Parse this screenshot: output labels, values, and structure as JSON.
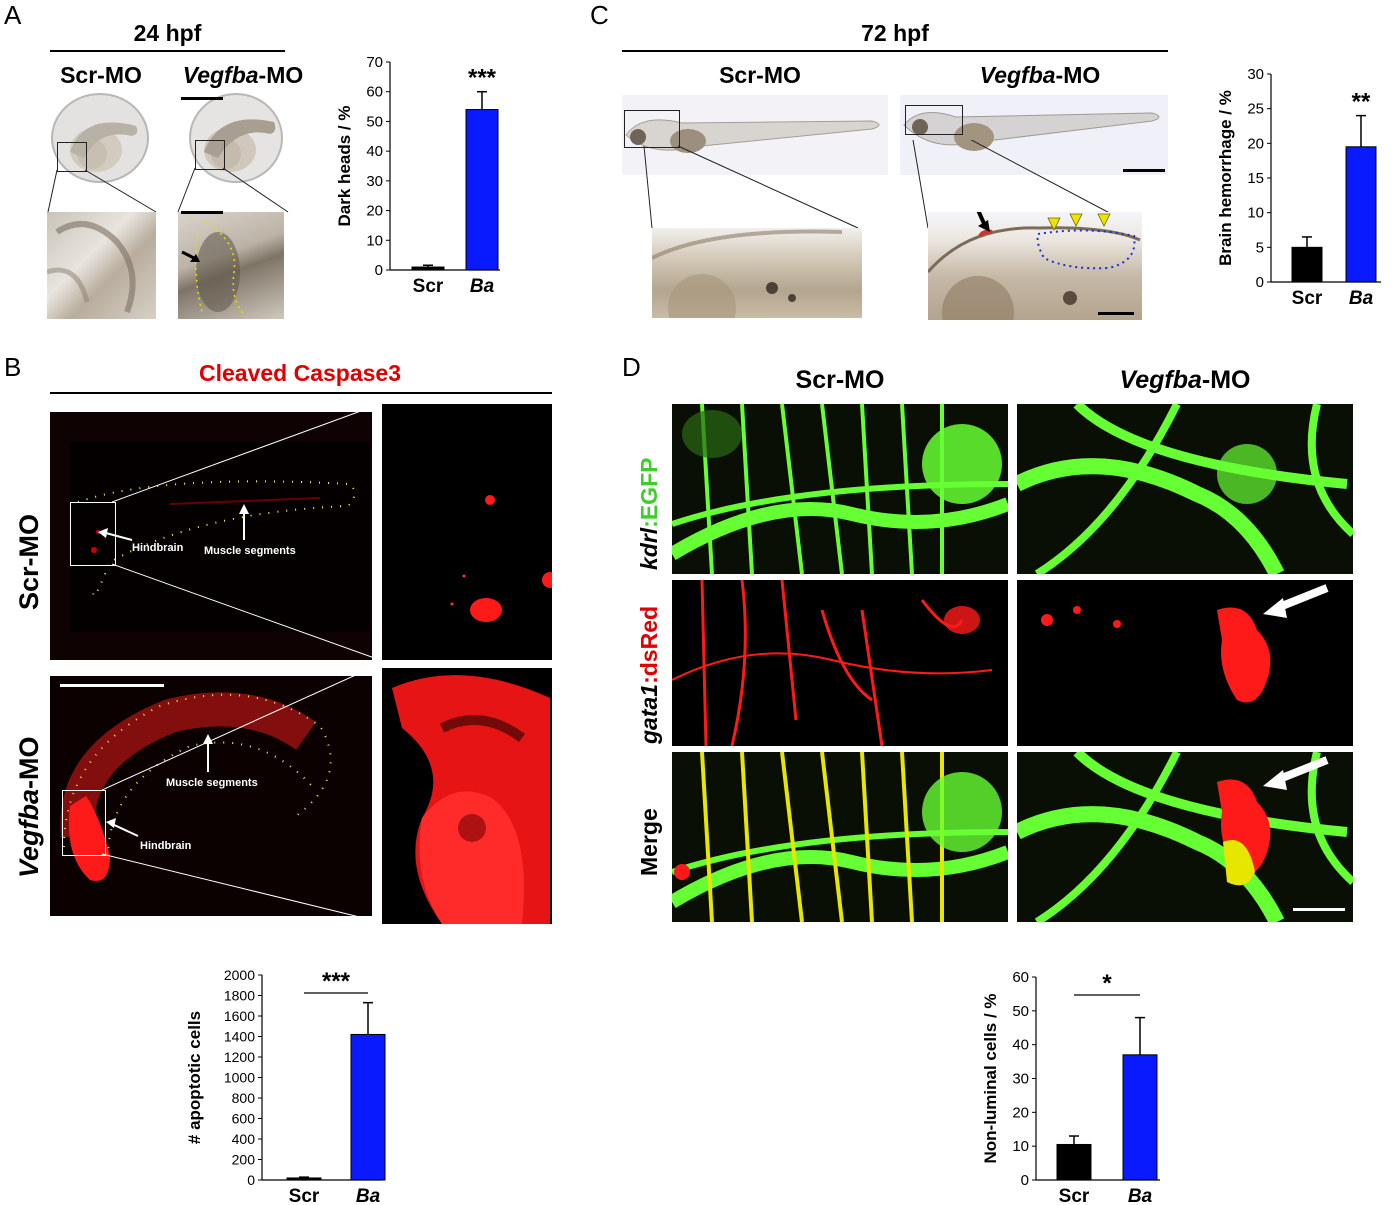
{
  "panels": {
    "A": {
      "letter": "A",
      "header": "24 hpf",
      "col1": "Scr-MO",
      "col2_italic": "Vegfba",
      "col2_suffix": "-MO"
    },
    "B": {
      "letter": "B",
      "header": "Cleaved Caspase3",
      "row1": "Scr-MO",
      "row2_italic": "Vegfba",
      "row2_suffix": "-MO",
      "label_hindbrain": "Hindbrain",
      "label_muscle": "Muscle segments"
    },
    "C": {
      "letter": "C",
      "header": "72 hpf",
      "col1": "Scr-MO",
      "col2_italic": "Vegfba",
      "col2_suffix": "-MO"
    },
    "D": {
      "letter": "D",
      "col1": "Scr-MO",
      "col2_italic": "Vegfba",
      "col2_suffix": "-MO",
      "row1_italic": "kdrl",
      "row1_suffix": ":EGFP",
      "row2_italic": "gata1",
      "row2_suffix": ":dsRed",
      "row3": "Merge"
    }
  },
  "colors": {
    "control_bar": "#000000",
    "treatment_bar": "#0a1aff",
    "red_signal": "#ff1a1a",
    "green_signal": "#66ff33"
  },
  "chart_data": [
    {
      "id": "A",
      "type": "bar",
      "categories": [
        "Scr",
        "Ba"
      ],
      "values": [
        1,
        54
      ],
      "errors": [
        0.6,
        6
      ],
      "ylabel": "Dark heads / %",
      "ylim": [
        0,
        70
      ],
      "yticks": [
        "0",
        "10",
        "20",
        "30",
        "40",
        "50",
        "60",
        "70"
      ],
      "significance": "***"
    },
    {
      "id": "C",
      "type": "bar",
      "categories": [
        "Scr",
        "Ba"
      ],
      "values": [
        5,
        19.5
      ],
      "errors": [
        1.5,
        4.5
      ],
      "ylabel": "Brain hemorrhage / %",
      "ylim": [
        0,
        30
      ],
      "yticks": [
        "0",
        "5",
        "10",
        "15",
        "20",
        "25",
        "30"
      ],
      "significance": "**"
    },
    {
      "id": "B",
      "type": "bar",
      "categories": [
        "Scr",
        "Ba"
      ],
      "values": [
        20,
        1420
      ],
      "errors": [
        8,
        310
      ],
      "ylabel": "# apoptotic cells",
      "ylim": [
        0,
        2000
      ],
      "yticks": [
        "0",
        "200",
        "400",
        "600",
        "800",
        "1000",
        "1200",
        "1400",
        "1600",
        "1800",
        "2000"
      ],
      "significance": "***"
    },
    {
      "id": "D",
      "type": "bar",
      "categories": [
        "Scr",
        "Ba"
      ],
      "values": [
        10.5,
        37
      ],
      "errors": [
        2.5,
        11
      ],
      "ylabel": "Non-luminal cells / %",
      "ylim": [
        0,
        60
      ],
      "yticks": [
        "0",
        "10",
        "20",
        "30",
        "40",
        "50",
        "60"
      ],
      "significance": "*"
    }
  ]
}
